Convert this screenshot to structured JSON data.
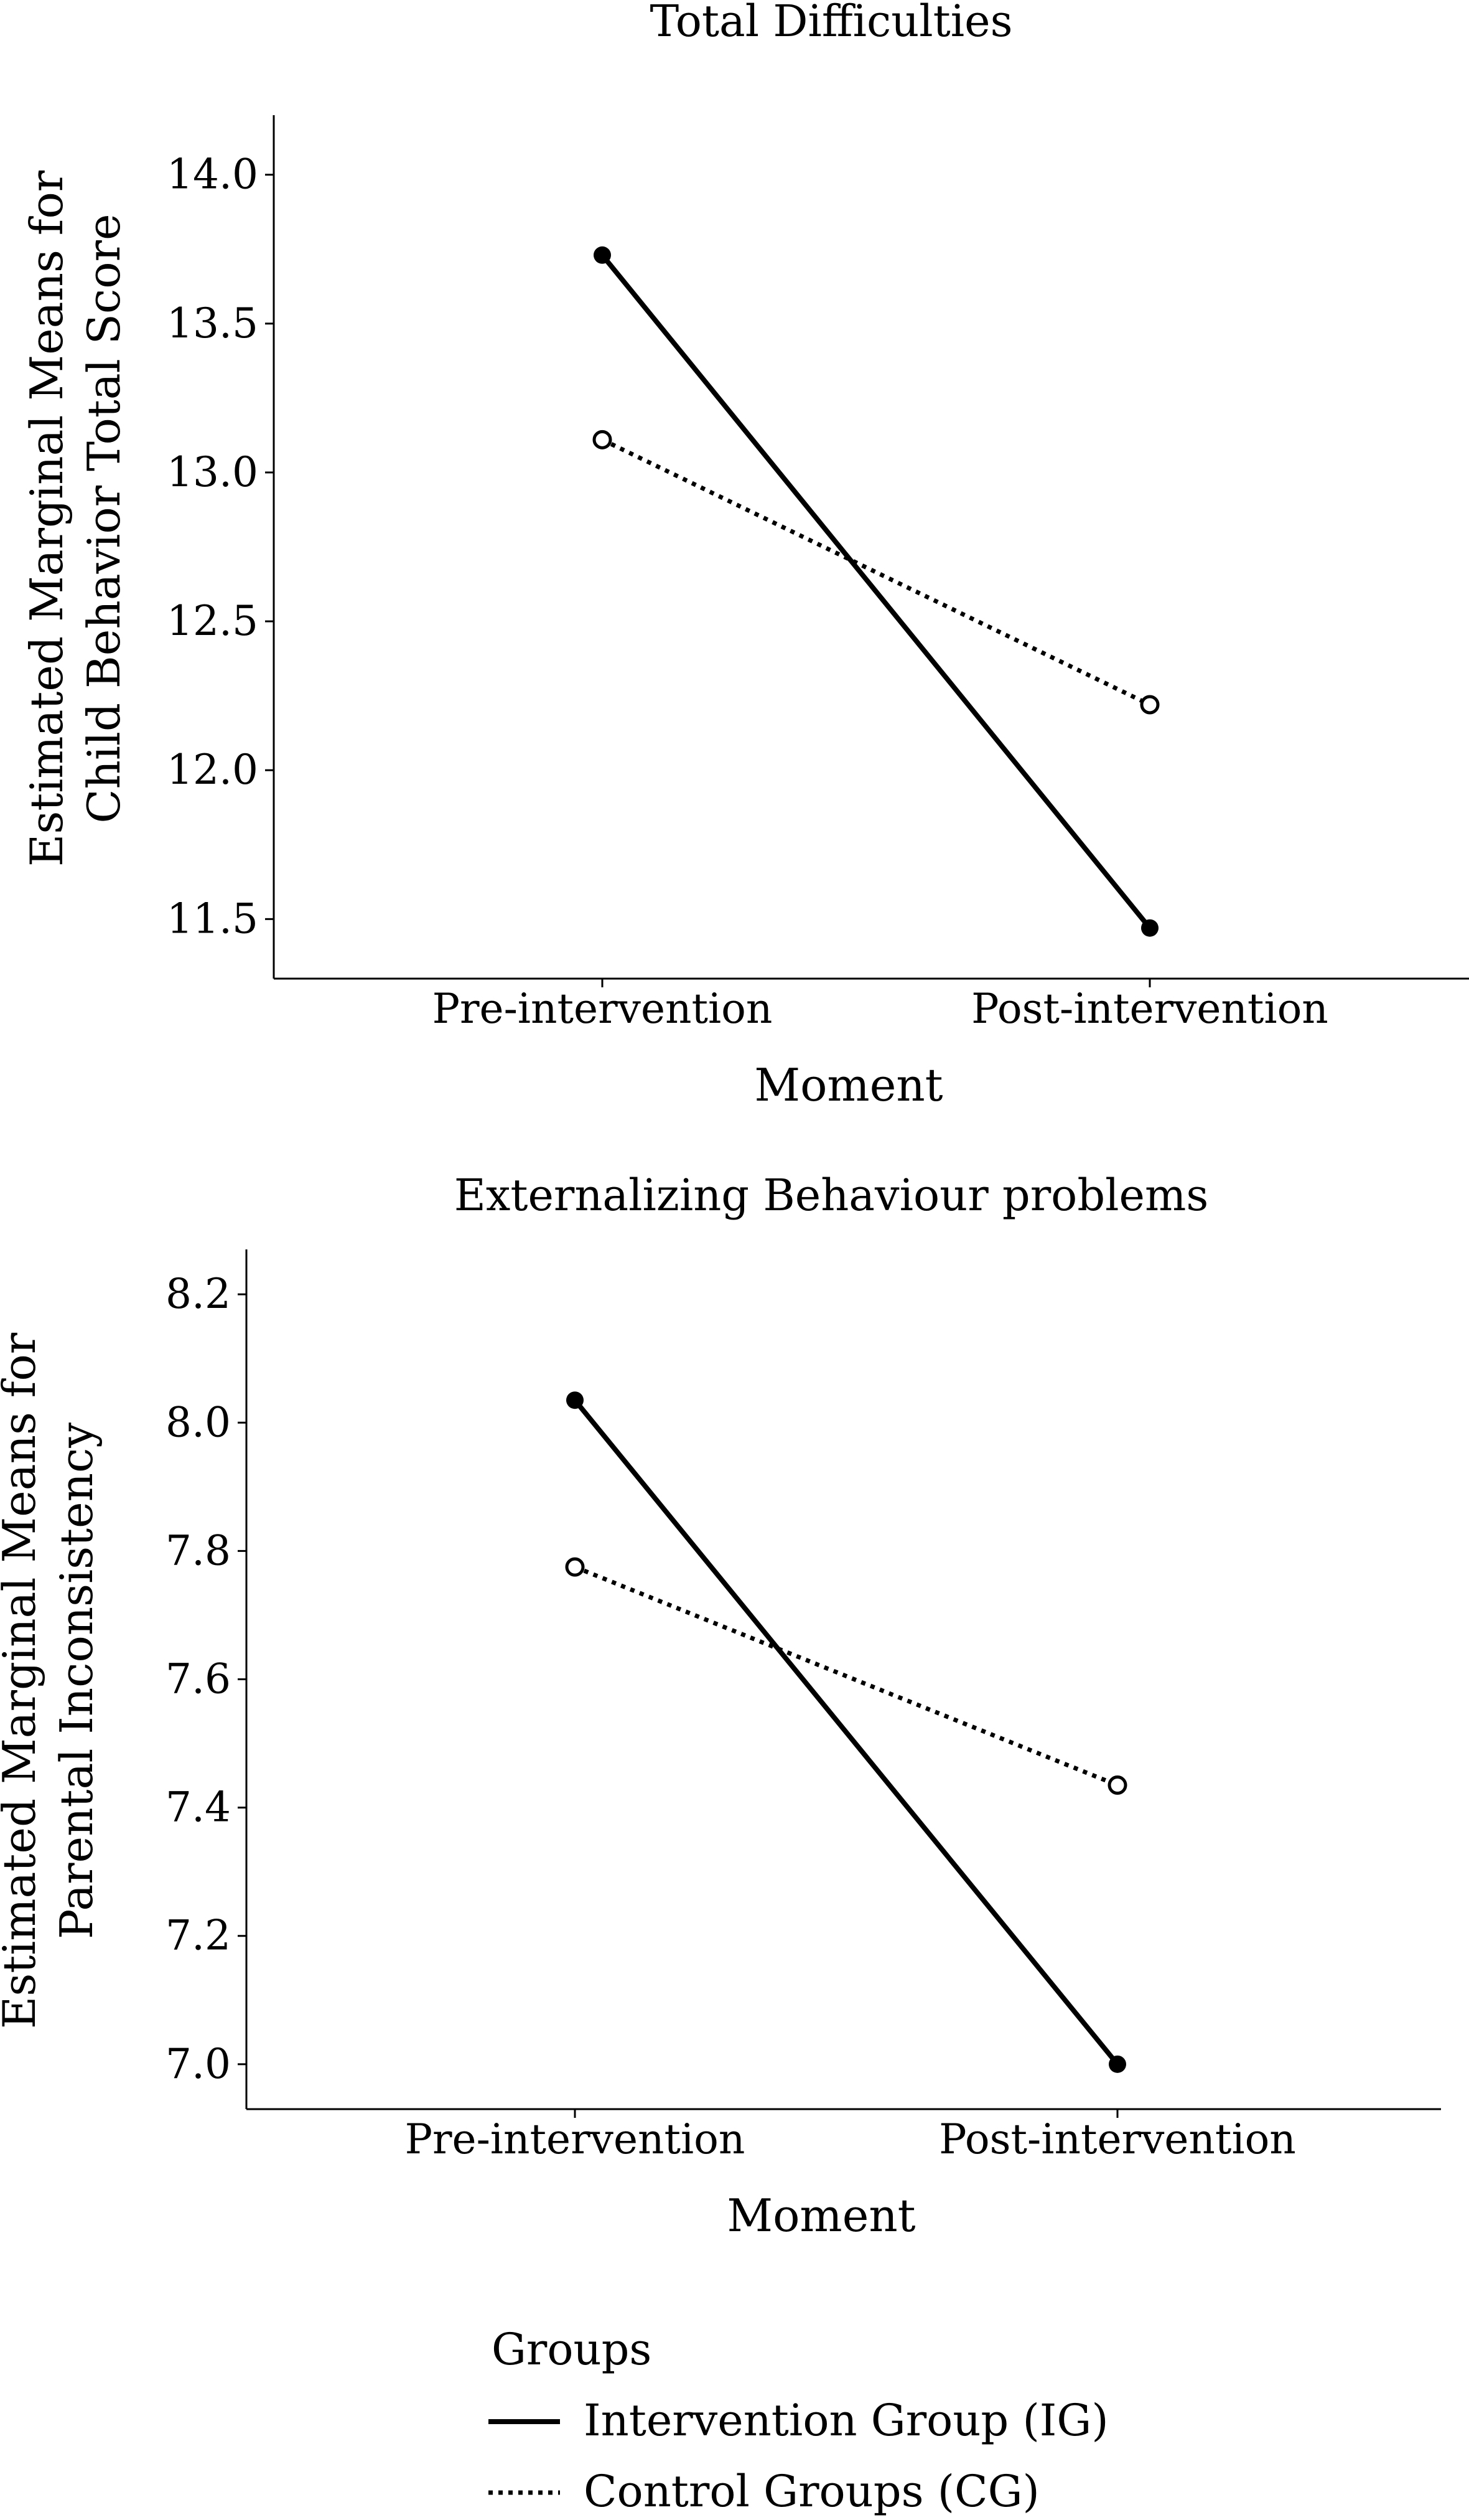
{
  "chart_data": [
    {
      "type": "line",
      "title": "Total Difficulties",
      "xlabel": "Moment",
      "ylabel_lines": [
        "Estimated Marginal Means for",
        "Child Behavior Total Score"
      ],
      "categories": [
        "Pre-intervention",
        "Post-intervention"
      ],
      "ylim": [
        11.3,
        14.2
      ],
      "yticks": [
        11.5,
        12.0,
        12.5,
        13.0,
        13.5,
        14.0
      ],
      "ytick_labels": [
        "11.5",
        "12.0",
        "12.5",
        "13.0",
        "13.5",
        "14.0"
      ],
      "grid": false,
      "series": [
        {
          "name": "Intervention Group (IG)",
          "values": [
            13.73,
            11.47
          ],
          "style": "solid",
          "marker": "filled-circle",
          "color": "#000000"
        },
        {
          "name": "Control Groups (CG)",
          "values": [
            13.11,
            12.22
          ],
          "style": "dotted",
          "marker": "open-circle",
          "color": "#000000"
        }
      ]
    },
    {
      "type": "line",
      "title": "Externalizing Behaviour problems",
      "xlabel": "Moment",
      "ylabel_lines": [
        "Estimated Marginal Means for",
        "Parental Inconsistency"
      ],
      "categories": [
        "Pre-intervention",
        "Post-intervention"
      ],
      "ylim": [
        6.93,
        8.27
      ],
      "yticks": [
        7.0,
        7.2,
        7.4,
        7.6,
        7.8,
        8.0,
        8.2
      ],
      "ytick_labels": [
        "7.0",
        "7.2",
        "7.4",
        "7.6",
        "7.8",
        "8.0",
        "8.2"
      ],
      "grid": false,
      "series": [
        {
          "name": "Intervention Group (IG)",
          "values": [
            8.035,
            7.0
          ],
          "style": "solid",
          "marker": "filled-circle",
          "color": "#000000"
        },
        {
          "name": "Control Groups (CG)",
          "values": [
            7.775,
            7.435
          ],
          "style": "dotted",
          "marker": "open-circle",
          "color": "#000000"
        }
      ]
    }
  ],
  "legend": {
    "title": "Groups",
    "placement": "bottom-center",
    "items": [
      {
        "label": "Intervention Group (IG)",
        "style": "solid"
      },
      {
        "label": "Control Groups (CG)",
        "style": "dotted"
      }
    ]
  }
}
